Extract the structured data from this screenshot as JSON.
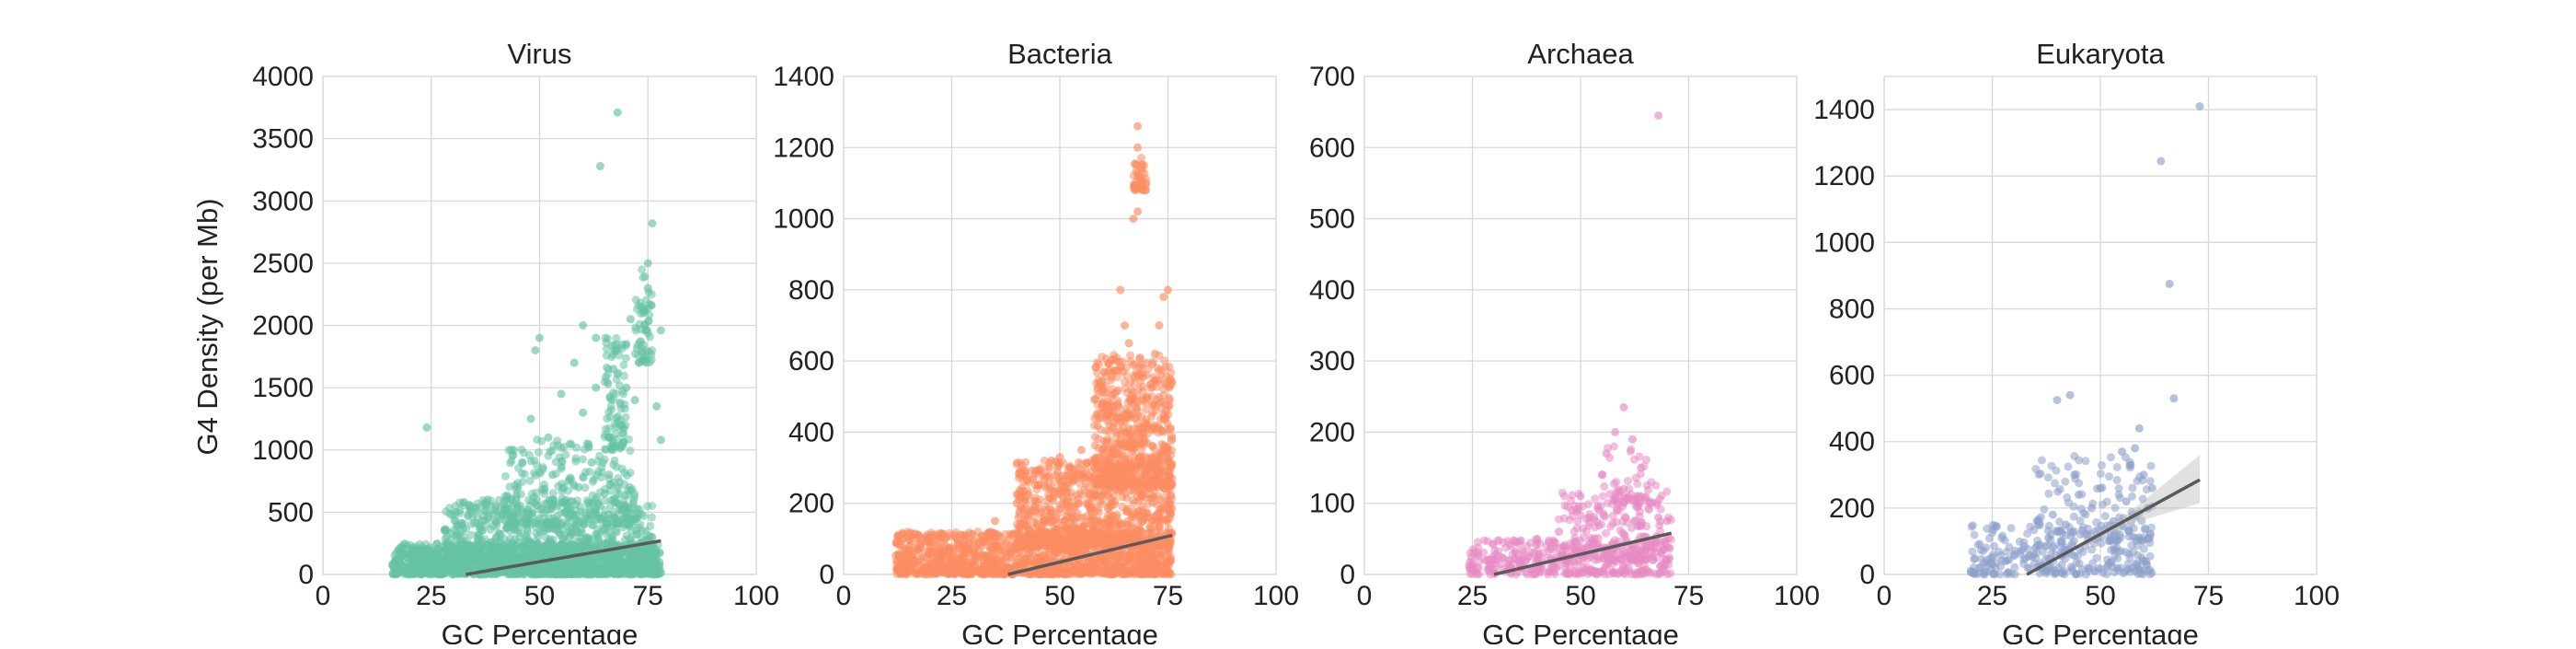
{
  "figure": {
    "ylabel": "G4 Density (per Mb)",
    "xlabel": "GC Percentage"
  },
  "chart_data": [
    {
      "type": "scatter",
      "title": "Virus",
      "xlabel": "GC Percentage",
      "ylabel": "G4 Density (per Mb)",
      "xlim": [
        0,
        100
      ],
      "ylim": [
        0,
        4000
      ],
      "xticks": [
        0,
        25,
        50,
        75,
        100
      ],
      "yticks": [
        0,
        500,
        1000,
        1500,
        2000,
        2500,
        3000,
        3500,
        4000
      ],
      "grid": true,
      "color": "#66c2a5",
      "regression": {
        "x": [
          33,
          78
        ],
        "y": [
          0,
          270
        ]
      },
      "points": [
        [
          24,
          1180
        ],
        [
          30,
          50
        ],
        [
          35,
          120
        ],
        [
          40,
          300
        ],
        [
          42,
          520
        ],
        [
          45,
          700
        ],
        [
          46,
          900
        ],
        [
          48,
          1250
        ],
        [
          49,
          1800
        ],
        [
          50,
          1900
        ],
        [
          52,
          1100
        ],
        [
          53,
          800
        ],
        [
          55,
          1450
        ],
        [
          56,
          600
        ],
        [
          57,
          1050
        ],
        [
          58,
          1700
        ],
        [
          60,
          1300
        ],
        [
          60,
          2000
        ],
        [
          61,
          1050
        ],
        [
          62,
          900
        ],
        [
          63,
          1500
        ],
        [
          63,
          1900
        ],
        [
          64,
          3280
        ],
        [
          65,
          650
        ],
        [
          66,
          1100
        ],
        [
          67,
          1650
        ],
        [
          68,
          3710
        ],
        [
          69,
          1200
        ],
        [
          70,
          1850
        ],
        [
          70,
          1500
        ],
        [
          71,
          2050
        ],
        [
          72,
          1400
        ],
        [
          73,
          1700
        ],
        [
          74,
          2100
        ],
        [
          75,
          2500
        ],
        [
          75,
          2300
        ],
        [
          76,
          2820
        ],
        [
          77,
          1350
        ],
        [
          78,
          1080
        ],
        [
          78,
          1960
        ],
        [
          20,
          60
        ],
        [
          25,
          120
        ],
        [
          28,
          200
        ],
        [
          32,
          400
        ],
        [
          38,
          600
        ],
        [
          44,
          1000
        ],
        [
          47,
          500
        ],
        [
          51,
          350
        ],
        [
          54,
          400
        ],
        [
          59,
          700
        ],
        [
          66,
          800
        ],
        [
          72,
          450
        ],
        [
          76,
          300
        ]
      ],
      "clusters": [
        {
          "x_range": [
            16,
            78
          ],
          "y_range": [
            0,
            250
          ],
          "n": 1400
        },
        {
          "x_range": [
            28,
            76
          ],
          "y_range": [
            100,
            600
          ],
          "n": 700
        },
        {
          "x_range": [
            42,
            72
          ],
          "y_range": [
            400,
            1100
          ],
          "n": 260
        },
        {
          "x_range": [
            65,
            70
          ],
          "y_range": [
            1000,
            1900
          ],
          "n": 90
        },
        {
          "x_range": [
            72,
            76
          ],
          "y_range": [
            1700,
            2450
          ],
          "n": 60
        }
      ]
    },
    {
      "type": "scatter",
      "title": "Bacteria",
      "xlabel": "GC Percentage",
      "ylabel": "",
      "xlim": [
        0,
        100
      ],
      "ylim": [
        0,
        1400
      ],
      "xticks": [
        0,
        25,
        50,
        75,
        100
      ],
      "yticks": [
        0,
        200,
        400,
        600,
        800,
        1000,
        1200,
        1400
      ],
      "grid": true,
      "color": "#fc8d62",
      "regression": {
        "x": [
          38,
          76
        ],
        "y": [
          0,
          110
        ]
      },
      "points": [
        [
          20,
          20
        ],
        [
          28,
          60
        ],
        [
          32,
          80
        ],
        [
          35,
          150
        ],
        [
          40,
          200
        ],
        [
          45,
          250
        ],
        [
          48,
          320
        ],
        [
          50,
          330
        ],
        [
          52,
          250
        ],
        [
          55,
          350
        ],
        [
          58,
          300
        ],
        [
          60,
          350
        ],
        [
          62,
          500
        ],
        [
          63,
          600
        ],
        [
          64,
          800
        ],
        [
          65,
          700
        ],
        [
          66,
          650
        ],
        [
          67,
          1000
        ],
        [
          68,
          1200
        ],
        [
          68,
          1260
        ],
        [
          69,
          1150
        ],
        [
          70,
          1100
        ],
        [
          68,
          1020
        ],
        [
          70,
          560
        ],
        [
          72,
          620
        ],
        [
          74,
          780
        ],
        [
          75,
          800
        ],
        [
          73,
          700
        ]
      ],
      "clusters": [
        {
          "x_range": [
            12,
            76
          ],
          "y_range": [
            0,
            120
          ],
          "n": 1300
        },
        {
          "x_range": [
            40,
            76
          ],
          "y_range": [
            80,
            320
          ],
          "n": 900
        },
        {
          "x_range": [
            58,
            76
          ],
          "y_range": [
            250,
            620
          ],
          "n": 600
        },
        {
          "x_range": [
            67,
            70
          ],
          "y_range": [
            1080,
            1180
          ],
          "n": 40
        }
      ]
    },
    {
      "type": "scatter",
      "title": "Archaea",
      "xlabel": "GC Percentage",
      "ylabel": "",
      "xlim": [
        0,
        100
      ],
      "ylim": [
        0,
        700
      ],
      "xticks": [
        0,
        25,
        50,
        75,
        100
      ],
      "yticks": [
        0,
        100,
        200,
        300,
        400,
        500,
        600,
        700
      ],
      "grid": true,
      "color": "#e78ac3",
      "regression": {
        "x": [
          30,
          71
        ],
        "y": [
          0,
          58
        ]
      },
      "points": [
        [
          68,
          645
        ],
        [
          60,
          235
        ],
        [
          58,
          200
        ],
        [
          62,
          190
        ],
        [
          56,
          170
        ],
        [
          64,
          150
        ],
        [
          55,
          140
        ],
        [
          50,
          110
        ],
        [
          48,
          90
        ],
        [
          52,
          80
        ],
        [
          45,
          60
        ],
        [
          40,
          50
        ],
        [
          35,
          30
        ],
        [
          30,
          20
        ],
        [
          25,
          10
        ],
        [
          66,
          100
        ],
        [
          68,
          80
        ],
        [
          70,
          75
        ],
        [
          60,
          120
        ],
        [
          63,
          110
        ]
      ],
      "clusters": [
        {
          "x_range": [
            24,
            71
          ],
          "y_range": [
            0,
            50
          ],
          "n": 350
        },
        {
          "x_range": [
            45,
            71
          ],
          "y_range": [
            20,
            120
          ],
          "n": 220
        },
        {
          "x_range": [
            55,
            68
          ],
          "y_range": [
            100,
            180
          ],
          "n": 40
        }
      ]
    },
    {
      "type": "scatter",
      "title": "Eukaryota",
      "xlabel": "GC Percentage",
      "ylabel": "",
      "xlim": [
        0,
        100
      ],
      "ylim": [
        0,
        1500
      ],
      "xticks": [
        0,
        25,
        50,
        75,
        100
      ],
      "yticks": [
        0,
        200,
        400,
        600,
        800,
        1000,
        1200,
        1400
      ],
      "grid": true,
      "color": "#8da0cb",
      "regression": {
        "x": [
          33,
          73
        ],
        "y": [
          0,
          285
        ],
        "ci_upper_end": 360,
        "ci_lower_end": 215
      },
      "points": [
        [
          73,
          1410
        ],
        [
          64,
          1245
        ],
        [
          66,
          875
        ],
        [
          67,
          530
        ],
        [
          43,
          540
        ],
        [
          40,
          525
        ],
        [
          59,
          440
        ],
        [
          55,
          370
        ],
        [
          57,
          330
        ],
        [
          60,
          300
        ],
        [
          50,
          260
        ],
        [
          45,
          240
        ],
        [
          48,
          200
        ],
        [
          53,
          160
        ],
        [
          38,
          110
        ],
        [
          35,
          80
        ],
        [
          30,
          60
        ],
        [
          28,
          40
        ],
        [
          25,
          30
        ],
        [
          22,
          20
        ],
        [
          20,
          10
        ],
        [
          58,
          380
        ],
        [
          62,
          260
        ],
        [
          61,
          200
        ],
        [
          42,
          150
        ],
        [
          47,
          120
        ],
        [
          52,
          100
        ],
        [
          56,
          220
        ],
        [
          44,
          300
        ],
        [
          39,
          180
        ]
      ],
      "clusters": [
        {
          "x_range": [
            20,
            62
          ],
          "y_range": [
            0,
            150
          ],
          "n": 260
        },
        {
          "x_range": [
            35,
            62
          ],
          "y_range": [
            100,
            360
          ],
          "n": 120
        }
      ]
    }
  ]
}
